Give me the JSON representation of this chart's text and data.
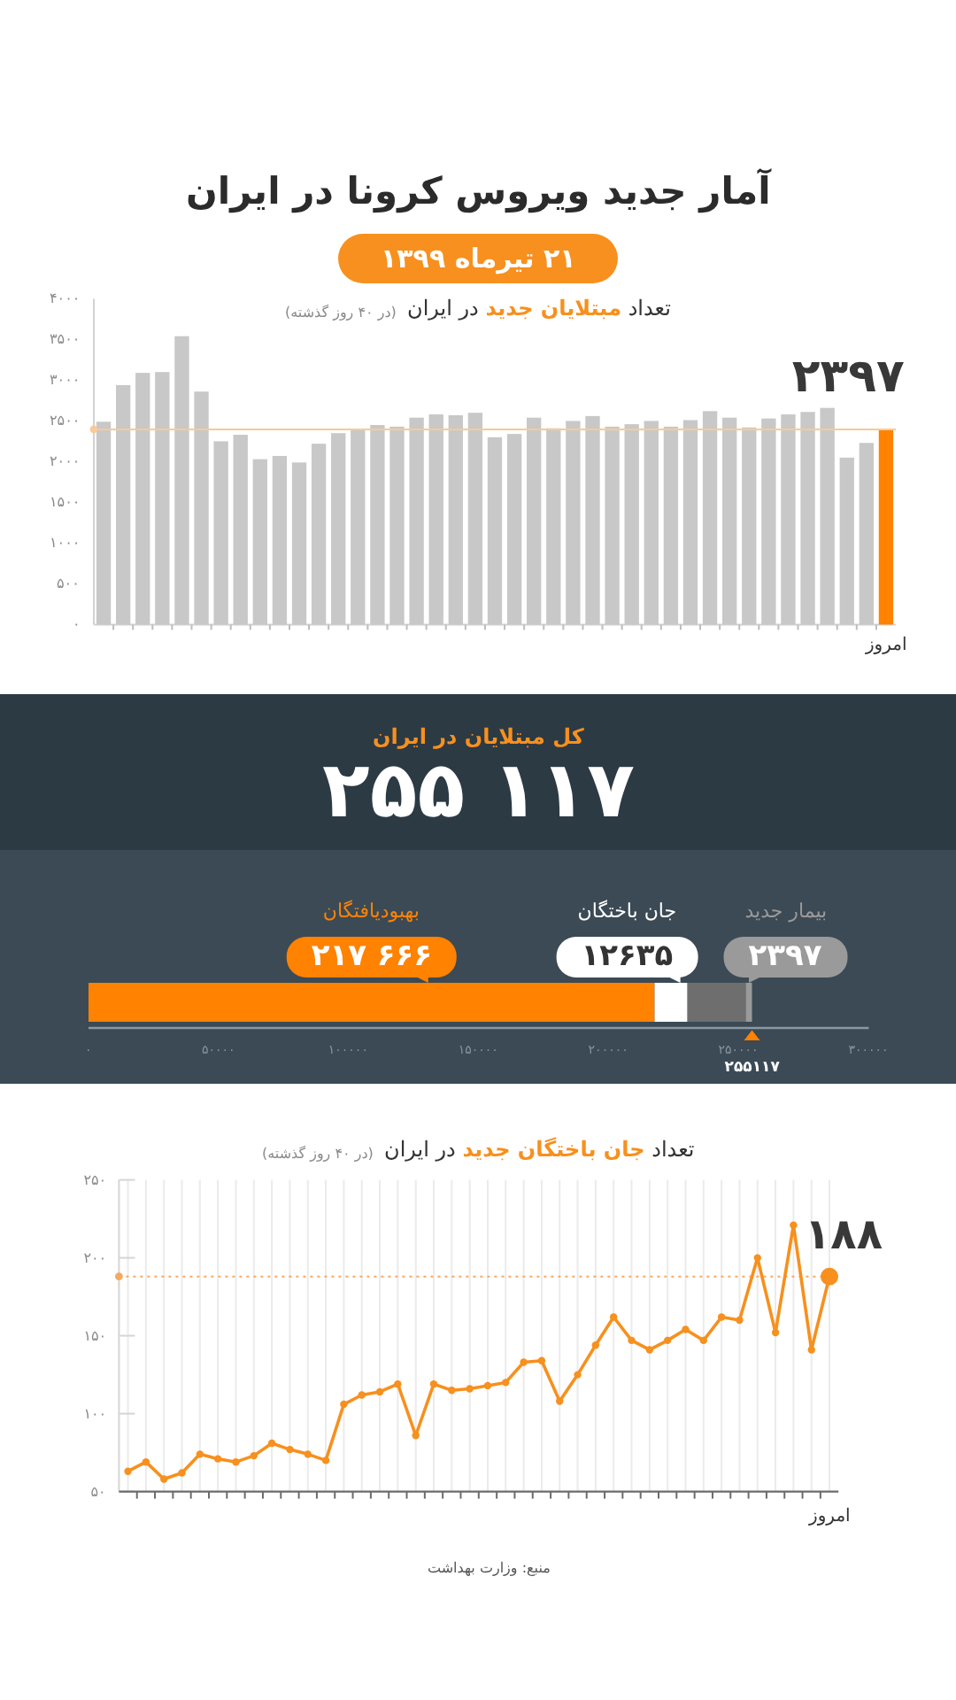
{
  "chart_data": [
    {
      "type": "other",
      "title": "آمار جدید ویروس کرونا در ایران",
      "subtitle": "۲۱ تیرماه ۱۳۹۹"
    },
    {
      "type": "bar",
      "title": "تعداد **مبتلایان جدید** در ایران",
      "subtitle": "(در ۴۰ روز گذشته)",
      "categories": [
        null,
        null,
        null,
        null,
        null,
        null,
        null,
        null,
        null,
        null,
        null,
        null,
        null,
        null,
        null,
        null,
        null,
        null,
        null,
        null,
        null,
        null,
        null,
        null,
        null,
        null,
        null,
        null,
        null,
        null,
        null,
        null,
        null,
        null,
        null,
        null,
        null,
        null,
        null,
        null,
        "امروز"
      ],
      "values": [
        2490,
        2940,
        3090,
        3100,
        3540,
        2860,
        2250,
        2330,
        2030,
        2070,
        1990,
        2220,
        2350,
        2390,
        2450,
        2430,
        2540,
        2580,
        2570,
        2600,
        2300,
        2340,
        2540,
        2410,
        2500,
        2560,
        2430,
        2460,
        2500,
        2430,
        2510,
        2620,
        2540,
        2420,
        2530,
        2580,
        2610,
        2660,
        2050,
        2230,
        2397
      ],
      "colors": [
        "#c8c8c8",
        "#c8c8c8",
        "#c8c8c8",
        "#c8c8c8",
        "#c8c8c8",
        "#c8c8c8",
        "#c8c8c8",
        "#c8c8c8",
        "#c8c8c8",
        "#c8c8c8",
        "#c8c8c8",
        "#c8c8c8",
        "#c8c8c8",
        "#c8c8c8",
        "#c8c8c8",
        "#c8c8c8",
        "#c8c8c8",
        "#c8c8c8",
        "#c8c8c8",
        "#c8c8c8",
        "#c8c8c8",
        "#c8c8c8",
        "#c8c8c8",
        "#c8c8c8",
        "#c8c8c8",
        "#c8c8c8",
        "#c8c8c8",
        "#c8c8c8",
        "#c8c8c8",
        "#c8c8c8",
        "#c8c8c8",
        "#c8c8c8",
        "#c8c8c8",
        "#c8c8c8",
        "#c8c8c8",
        "#c8c8c8",
        "#c8c8c8",
        "#c8c8c8",
        "#c8c8c8",
        "#c8c8c8",
        "#ff8200"
      ],
      "value_labels": [
        null,
        null,
        null,
        null,
        null,
        null,
        null,
        null,
        null,
        null,
        null,
        null,
        null,
        null,
        null,
        null,
        null,
        null,
        null,
        null,
        null,
        null,
        null,
        null,
        null,
        null,
        null,
        null,
        null,
        null,
        null,
        null,
        null,
        null,
        null,
        null,
        null,
        null,
        null,
        null,
        "۲۳۹۷"
      ],
      "ylim": [
        0,
        4000
      ],
      "yticks": [
        {
          "value": 0,
          "label": "۰"
        },
        {
          "value": 500,
          "label": "۵۰۰"
        },
        {
          "value": 1000,
          "label": "۱۰۰۰"
        },
        {
          "value": 1500,
          "label": "۱۵۰۰"
        },
        {
          "value": 2000,
          "label": "۲۰۰۰"
        },
        {
          "value": 2500,
          "label": "۲۵۰۰"
        },
        {
          "value": 3000,
          "label": "۳۰۰۰"
        },
        {
          "value": 3500,
          "label": "۳۵۰۰"
        },
        {
          "value": 4000,
          "label": "۴۰۰۰"
        }
      ],
      "ref_lines": [
        {
          "axis": "y",
          "value": 2397,
          "color": "#f9c99a"
        }
      ]
    },
    {
      "type": "bar",
      "orientation": "horizontal",
      "stacked": true,
      "title": "کل مبتلایان در ایران",
      "annotations": [
        "۲۵۵ ۱۱۷"
      ],
      "categories": [
        null
      ],
      "series": [
        {
          "name": "بهبودیافتگان",
          "color": "#ff8200",
          "values": [
            217666
          ],
          "value_labels": [
            "۲۱۷ ۶۶۶"
          ]
        },
        {
          "name": "جان باختگان",
          "color": "#ffffff",
          "values": [
            12635
          ],
          "value_labels": [
            "۱۲۶۳۵"
          ]
        },
        {
          "color": "#6e6e6e",
          "values": [
            22419
          ]
        },
        {
          "name": "بیمار جدید",
          "color": "#9a9a9a",
          "values": [
            2397
          ],
          "value_labels": [
            "۲۳۹۷"
          ]
        }
      ],
      "totals": [
        "۲۵۵۱۱۷"
      ],
      "xlim": [
        0,
        300000
      ],
      "xticks": [
        {
          "value": 0,
          "label": "۰"
        },
        {
          "value": 50000,
          "label": "۵۰۰۰۰"
        },
        {
          "value": 100000,
          "label": "۱۰۰۰۰۰"
        },
        {
          "value": 150000,
          "label": "۱۵۰۰۰۰"
        },
        {
          "value": 200000,
          "label": "۲۰۰۰۰۰"
        },
        {
          "value": 250000,
          "label": "۲۵۰۰۰۰"
        },
        {
          "value": 300000,
          "label": "۳۰۰۰۰۰"
        }
      ]
    },
    {
      "type": "line",
      "title": "تعداد **جان باختگان جدید** در ایران",
      "subtitle": "(در ۴۰ روز گذشته)",
      "categories": [
        null,
        null,
        null,
        null,
        null,
        null,
        null,
        null,
        null,
        null,
        null,
        null,
        null,
        null,
        null,
        null,
        null,
        null,
        null,
        null,
        null,
        null,
        null,
        null,
        null,
        null,
        null,
        null,
        null,
        null,
        null,
        null,
        null,
        null,
        null,
        null,
        null,
        null,
        null,
        "امروز"
      ],
      "series": [
        {
          "color": "#f7901e",
          "values": [
            63,
            69,
            58,
            62,
            74,
            71,
            69,
            73,
            81,
            77,
            74,
            70,
            106,
            112,
            114,
            119,
            86,
            119,
            115,
            116,
            118,
            120,
            133,
            134,
            108,
            125,
            144,
            162,
            147,
            141,
            147,
            154,
            147,
            162,
            160,
            200,
            152,
            221,
            141,
            188
          ],
          "value_labels": [
            null,
            null,
            null,
            null,
            null,
            null,
            null,
            null,
            null,
            null,
            null,
            null,
            null,
            null,
            null,
            null,
            null,
            null,
            null,
            null,
            null,
            null,
            null,
            null,
            null,
            null,
            null,
            null,
            null,
            null,
            null,
            null,
            null,
            null,
            null,
            null,
            null,
            null,
            null,
            "۱۸۸"
          ]
        }
      ],
      "marker": "circle",
      "grid": "x",
      "ylim": [
        50,
        250
      ],
      "yticks": [
        {
          "value": 50,
          "label": "۵۰"
        },
        {
          "value": 100,
          "label": "۱۰۰"
        },
        {
          "value": 150,
          "label": "۱۵۰"
        },
        {
          "value": 200,
          "label": "۲۰۰"
        },
        {
          "value": 250,
          "label": "۲۵۰"
        }
      ],
      "ref_lines": [
        {
          "axis": "y",
          "value": 188,
          "color": "#f7a860",
          "line_style": "dotted"
        }
      ],
      "annotations": [
        "منبع: وزارت بهداشت"
      ]
    }
  ]
}
